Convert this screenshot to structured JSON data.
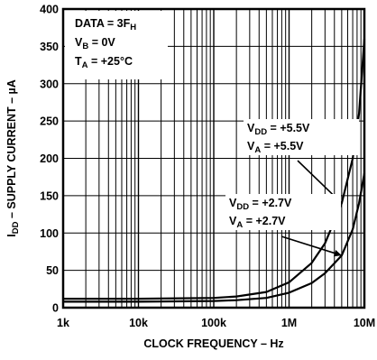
{
  "chart_data": {
    "type": "line",
    "xlabel": "CLOCK FREQUENCY – Hz",
    "ylabel": {
      "main": "I",
      "sub": "DD",
      "rest": " – SUPPLY CURRENT – µA"
    },
    "xscale": "log",
    "xlim": [
      1000,
      10000000
    ],
    "ylim": [
      0,
      400
    ],
    "grid": true,
    "x_ticks": [
      {
        "value": 1000,
        "label": "1k"
      },
      {
        "value": 10000,
        "label": "10k"
      },
      {
        "value": 100000,
        "label": "100k"
      },
      {
        "value": 1000000,
        "label": "1M"
      },
      {
        "value": 10000000,
        "label": "10M"
      }
    ],
    "y_ticks": [
      {
        "value": 0,
        "label": "0"
      },
      {
        "value": 50,
        "label": "50"
      },
      {
        "value": 100,
        "label": "100"
      },
      {
        "value": 150,
        "label": "150"
      },
      {
        "value": 200,
        "label": "200"
      },
      {
        "value": 250,
        "label": "250"
      },
      {
        "value": 300,
        "label": "300"
      },
      {
        "value": 350,
        "label": "350"
      },
      {
        "value": 400,
        "label": "400"
      }
    ],
    "conditions": [
      {
        "main": "DATA = 3F",
        "sub": "H",
        "rest": ""
      },
      {
        "main": "V",
        "sub": "B",
        "rest": " = 0V"
      },
      {
        "main": "T",
        "sub": "A",
        "rest": " = +25°C"
      }
    ],
    "series": [
      {
        "labels": [
          {
            "main": "V",
            "sub": "DD",
            "rest": " = +5.5V"
          },
          {
            "main": "V",
            "sub": "A",
            "rest": " = +5.5V"
          }
        ],
        "x": [
          1000,
          10000,
          100000,
          200000,
          500000,
          1000000,
          2000000,
          3000000,
          5000000,
          7000000,
          8500000,
          10000000
        ],
        "y": [
          12,
          12,
          13,
          15,
          21,
          34,
          60,
          86,
          140,
          200,
          260,
          360
        ]
      },
      {
        "labels": [
          {
            "main": "V",
            "sub": "DD",
            "rest": " = +2.7V"
          },
          {
            "main": "V",
            "sub": "A",
            "rest": " = +2.7V"
          }
        ],
        "x": [
          1000,
          10000,
          100000,
          200000,
          500000,
          1000000,
          2000000,
          3000000,
          5000000,
          7000000,
          8500000,
          10000000
        ],
        "y": [
          8,
          8,
          9,
          10,
          13,
          20,
          33,
          46,
          70,
          105,
          140,
          180
        ]
      }
    ]
  }
}
